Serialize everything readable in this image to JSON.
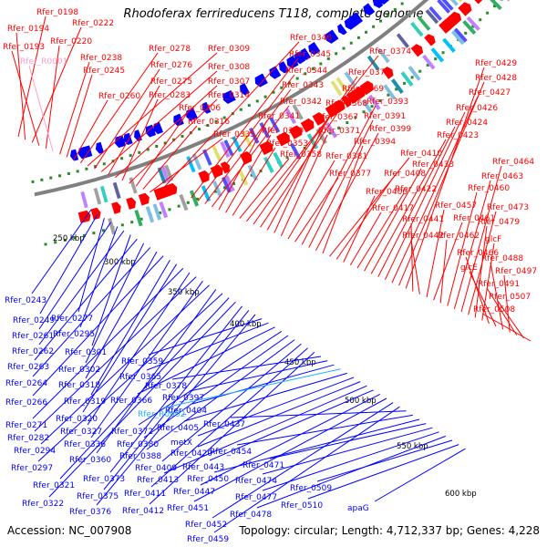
{
  "header": {
    "title": "Rhodoferax ferrireducens T118, complete genome"
  },
  "footer": {
    "accession": "Accession: NC_007908",
    "summary": "Topology: circular; Length: 4,712,337 bp; Genes: 4,228"
  },
  "colors": {
    "forward": "#ff0000",
    "reverse": "#0000ff",
    "forward_special": "#ffa0c8",
    "reverse_special": "#20b0ff",
    "backbone": "#808080",
    "ticks": "#2a8a2a"
  },
  "scale_ticks": [
    "250 kbp",
    "300 kbp",
    "350 kbp",
    "400 kbp",
    "450 kbp",
    "500 kbp",
    "550 kbp",
    "600 kbp"
  ],
  "forward_genes": [
    "Rfer_0198",
    "Rfer_0194",
    "Rfer_0222",
    "Rfer_0193",
    "Rfer_0220",
    "Rfer_R0001",
    "Rfer_0238",
    "Rfer_0245",
    "Rfer_0260",
    "Rfer_0278",
    "Rfer_0309",
    "Rfer_0276",
    "Rfer_0308",
    "Rfer_0275",
    "Rfer_0307",
    "Rfer_0283",
    "Rfer_0314",
    "Rfer_0306",
    "Rfer_0316",
    "Rfer_0335",
    "Rfer_0346",
    "Rfer_0345",
    "Rfer_0344",
    "Rfer_0343",
    "Rfer_0342",
    "Rfer_0341",
    "Rfer_0349",
    "Rfer_0353",
    "Rfer_0358",
    "Rfer_0374",
    "Rfer_0370",
    "Rfer_0369",
    "Rfer_0368",
    "Rfer_0367",
    "Rfer_0371",
    "Rfer_0381",
    "Rfer_0377",
    "Rfer_0393",
    "Rfer_0391",
    "Rfer_0399",
    "Rfer_0394",
    "Rfer_0410",
    "Rfer_0408",
    "Rfer_0400",
    "Rfer_0417",
    "Rfer_0422",
    "Rfer_0433",
    "Rfer_0423",
    "Rfer_0424",
    "Rfer_0426",
    "Rfer_0427",
    "Rfer_0428",
    "Rfer_0429",
    "Rfer_0441",
    "Rfer_0442",
    "Rfer_0457",
    "Rfer_0461",
    "Rfer_0462",
    "Rfer_0460",
    "Rfer_0463",
    "Rfer_0464",
    "Rfer_0473",
    "Rfer_0479",
    "glcF",
    "Rfer_0466",
    "glcE",
    "Rfer_0488",
    "Rfer_0497",
    "Rfer_0491",
    "Rfer_0507",
    "Rfer_0508"
  ],
  "reverse_genes": [
    "Rfer_0243",
    "Rfer_0249",
    "Rfer_0277",
    "Rfer_0261",
    "Rfer_0295",
    "Rfer_0262",
    "Rfer_0301",
    "Rfer_0263",
    "Rfer_0302",
    "Rfer_0264",
    "Rfer_0318",
    "Rfer_0266",
    "Rfer_0319",
    "Rfer_0320",
    "Rfer_0271",
    "Rfer_0327",
    "Rfer_0282",
    "Rfer_0336",
    "Rfer_0294",
    "Rfer_0360",
    "Rfer_0297",
    "Rfer_0321",
    "Rfer_0322",
    "Rfer_0373",
    "Rfer_0375",
    "Rfer_0376",
    "Rfer_0359",
    "Rfer_0365",
    "Rfer_0366",
    "Rfer_0372",
    "Rfer_0380",
    "Rfer_0388",
    "Rfer_0409",
    "Rfer_0411",
    "Rfer_0412",
    "Rfer_0378",
    "Rfer_0397",
    "Rfer_0404",
    "Rfer_R0002",
    "Rfer_0405",
    "metX",
    "Rfer_0420",
    "Rfer_0413",
    "Rfer_0443",
    "Rfer_0447",
    "Rfer_0451",
    "Rfer_0452",
    "Rfer_0459",
    "Rfer_0437",
    "Rfer_0454",
    "Rfer_0450",
    "Rfer_0471",
    "Rfer_0474",
    "Rfer_0477",
    "Rfer_0478",
    "Rfer_0509",
    "Rfer_0510",
    "apaG"
  ]
}
